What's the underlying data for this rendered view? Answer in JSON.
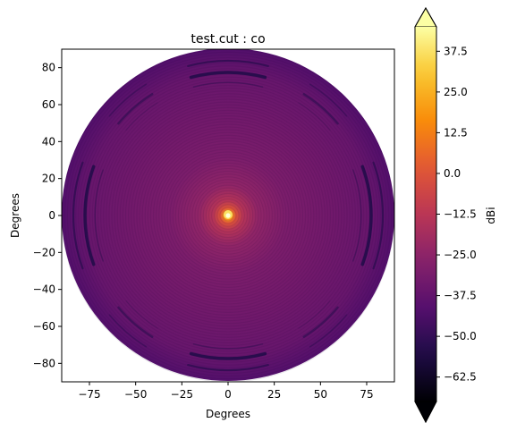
{
  "chart_data": {
    "type": "heatmap",
    "title": "test.cut : co",
    "xlabel": "Degrees",
    "ylabel": "Degrees",
    "xlim": [
      -90,
      90
    ],
    "ylim": [
      -90,
      90
    ],
    "x_ticks": [
      -75,
      -50,
      -25,
      0,
      25,
      50,
      75
    ],
    "y_ticks": [
      -80,
      -60,
      -40,
      -20,
      0,
      20,
      40,
      60,
      80
    ],
    "grid": false,
    "pattern": {
      "shape": "circular far-field cut, radius 90 degrees",
      "peak_dBi": 40,
      "peak_location": [
        0,
        0
      ],
      "background_dBi": -33,
      "edge_dBi": -42,
      "null_rings_dBi": -55
    },
    "colorbar": {
      "label": "dBi",
      "colormap": "inferno",
      "range": [
        -70,
        45
      ],
      "ticks": [
        -62.5,
        -50.0,
        -37.5,
        -25.0,
        -12.5,
        0.0,
        12.5,
        25.0,
        37.5
      ],
      "tick_labels": [
        "−62.5",
        "−50.0",
        "−37.5",
        "−25.0",
        "−12.5",
        "0.0",
        "12.5",
        "25.0",
        "37.5"
      ],
      "extend": "both"
    }
  }
}
